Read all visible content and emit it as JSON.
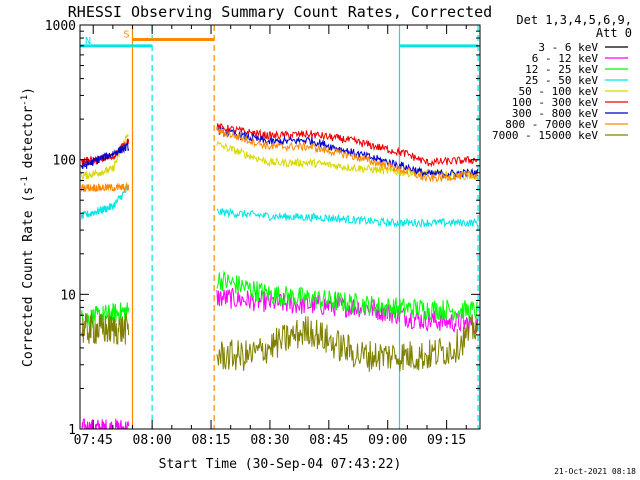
{
  "chart_data": {
    "type": "line",
    "title": "RHESSI Observing Summary Count Rates, Corrected",
    "xlabel": "Start Time (30-Sep-04 07:43:22)",
    "ylabel": "Corrected Count Rate (s",
    "ylabel_sup1": "-1",
    "ylabel_mid": " detector",
    "ylabel_sup2": "-1",
    "ylabel_end": ")",
    "yscale": "log",
    "ylim": [
      1,
      1000
    ],
    "xlim_minutes": [
      -3.37,
      98.5
    ],
    "x_ticks": [
      {
        "label": "07:45",
        "minute": 0
      },
      {
        "label": "08:00",
        "minute": 15
      },
      {
        "label": "08:15",
        "minute": 30
      },
      {
        "label": "08:30",
        "minute": 45
      },
      {
        "label": "08:45",
        "minute": 60
      },
      {
        "label": "09:00",
        "minute": 75
      },
      {
        "label": "09:15",
        "minute": 90
      }
    ],
    "y_ticks": [
      {
        "label": "1",
        "value": 1
      },
      {
        "label": "10",
        "value": 10
      },
      {
        "label": "100",
        "value": 100
      },
      {
        "label": "1000",
        "value": 1000
      }
    ],
    "legend_header": [
      "Det 1,3,4,5,6,9,",
      "Att 0"
    ],
    "legend_position": "right",
    "footer_date": "21-Oct-2021 08:18",
    "series": [
      {
        "name": "3 - 6 keV",
        "color": "#000000"
      },
      {
        "name": "6 - 12 keV",
        "color": "#ff00ff"
      },
      {
        "name": "12 - 25 keV",
        "color": "#00ff00"
      },
      {
        "name": "25 - 50 keV",
        "color": "#00e5e5"
      },
      {
        "name": "50 - 100 keV",
        "color": "#d8d800"
      },
      {
        "name": "100 - 300 keV",
        "color": "#ee0000"
      },
      {
        "name": "300 - 800 keV",
        "color": "#0000cc"
      },
      {
        "name": "800 - 7000 keV",
        "color": "#ff8800"
      },
      {
        "name": "7000 - 15000 keV",
        "color": "#808000"
      }
    ],
    "segments": [
      {
        "label": "S",
        "start_minute": 10.0,
        "end_minute": 30.8,
        "color": "#ff8800",
        "level": 780
      },
      {
        "label": "N",
        "start_minute": -3.37,
        "end_minute": 15.0,
        "color": "#00e5e5",
        "level": 700
      },
      {
        "label": "",
        "start_minute": 78.0,
        "end_minute": 98.0,
        "color": "#00e5e5",
        "level": 700
      }
    ],
    "vertical_markers": [
      {
        "minute": 10.0,
        "color": "#ff8800",
        "style": "solid"
      },
      {
        "minute": 30.8,
        "color": "#ff8800",
        "style": "dashed"
      },
      {
        "minute": 15.0,
        "color": "#00e5e5",
        "style": "dashed"
      },
      {
        "minute": 78.0,
        "color": "#00e5e5",
        "style": "solid"
      },
      {
        "minute": 98.0,
        "color": "#00e5e5",
        "style": "dashed"
      }
    ],
    "data_sample": {
      "segment1_minutes": [
        -3.0,
        9.0
      ],
      "segment2_minutes": [
        31.5,
        98.0
      ],
      "series_levels": [
        {
          "name": "3 - 6 keV",
          "segment1": [
            [
              -3,
              1
            ],
            [
              9,
              1
            ]
          ],
          "segment2": [
            [
              31.5,
              1
            ],
            [
              98,
              1
            ]
          ]
        },
        {
          "name": "6 - 12 keV",
          "segment1": [
            [
              -3,
              1
            ],
            [
              9,
              1
            ]
          ],
          "segment2": [
            [
              31.5,
              9.5
            ],
            [
              50,
              8.5
            ],
            [
              70,
              8
            ],
            [
              83,
              6.5
            ],
            [
              98,
              6
            ]
          ]
        },
        {
          "name": "12 - 25 keV",
          "segment1": [
            [
              -3,
              6.5
            ],
            [
              9,
              7.5
            ]
          ],
          "segment2": [
            [
              31.5,
              13
            ],
            [
              45,
              10
            ],
            [
              60,
              9
            ],
            [
              75,
              8
            ],
            [
              98,
              7.5
            ]
          ]
        },
        {
          "name": "25 - 50 keV",
          "segment1": [
            [
              -3,
              38
            ],
            [
              5,
              45
            ],
            [
              9,
              62
            ]
          ],
          "segment2": [
            [
              31.5,
              41
            ],
            [
              45,
              38
            ],
            [
              60,
              37
            ],
            [
              75,
              34
            ],
            [
              98,
              34
            ]
          ]
        },
        {
          "name": "50 - 100 keV",
          "segment1": [
            [
              -3,
              75
            ],
            [
              5,
              85
            ],
            [
              9,
              160
            ]
          ],
          "segment2": [
            [
              31.5,
              130
            ],
            [
              45,
              95
            ],
            [
              55,
              95
            ],
            [
              65,
              88
            ],
            [
              80,
              80
            ],
            [
              98,
              75
            ]
          ]
        },
        {
          "name": "100 - 300 keV",
          "segment1": [
            [
              -3,
              96
            ],
            [
              5,
              105
            ],
            [
              9,
              140
            ]
          ],
          "segment2": [
            [
              31.5,
              175
            ],
            [
              45,
              150
            ],
            [
              55,
              155
            ],
            [
              65,
              140
            ],
            [
              80,
              110
            ],
            [
              85,
              95
            ],
            [
              98,
              100
            ]
          ]
        },
        {
          "name": "300 - 800 keV",
          "segment1": [
            [
              -3,
              88
            ],
            [
              9,
              125
            ]
          ],
          "segment2": [
            [
              31.5,
              165
            ],
            [
              45,
              135
            ],
            [
              55,
              140
            ],
            [
              65,
              115
            ],
            [
              80,
              88
            ],
            [
              85,
              78
            ],
            [
              98,
              80
            ]
          ]
        },
        {
          "name": "800 - 7000 keV",
          "segment1": [
            [
              -3,
              62
            ],
            [
              9,
              62
            ]
          ],
          "segment2": [
            [
              31.5,
              165
            ],
            [
              45,
              125
            ],
            [
              55,
              125
            ],
            [
              65,
              108
            ],
            [
              80,
              82
            ],
            [
              85,
              72
            ],
            [
              98,
              78
            ]
          ]
        },
        {
          "name": "7000 - 15000 keV",
          "segment1": [
            [
              -3,
              5.5
            ],
            [
              9,
              5.5
            ]
          ],
          "segment2": [
            [
              31.5,
              3.5
            ],
            [
              40,
              3.5
            ],
            [
              48,
              4.5
            ],
            [
              55,
              5.5
            ],
            [
              60,
              4.5
            ],
            [
              68,
              3.5
            ],
            [
              85,
              3.5
            ],
            [
              92,
              4
            ],
            [
              98,
              6
            ]
          ]
        }
      ]
    }
  }
}
